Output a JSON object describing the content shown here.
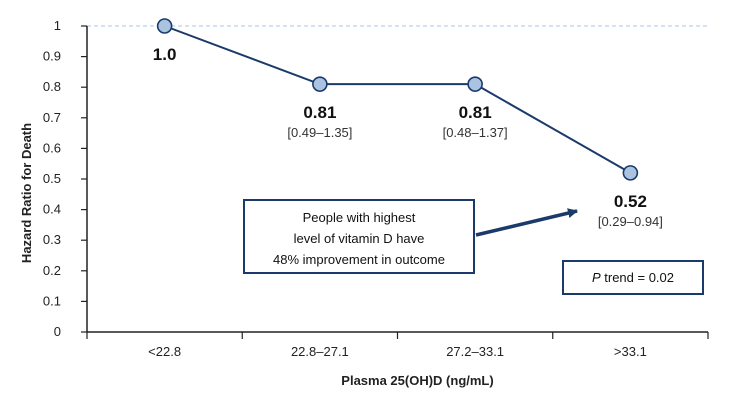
{
  "chart_data": {
    "type": "line",
    "title": "",
    "xlabel": "Plasma 25(OH)D (ng/mL)",
    "ylabel": "Hazard Ratio for Death",
    "categories": [
      "<22.8",
      "22.8–27.1",
      "27.2–33.1",
      ">33.1"
    ],
    "values": [
      1.0,
      0.81,
      0.81,
      0.52
    ],
    "value_labels": [
      "1.0",
      "0.81",
      "0.81",
      "0.52"
    ],
    "ci_labels": [
      "",
      "[0.49–1.35]",
      "[0.48–1.37]",
      "[0.29–0.94]"
    ],
    "ylim": [
      0,
      1
    ],
    "yticks": [
      "0",
      "0.1",
      "0.2",
      "0.3",
      "0.4",
      "0.5",
      "0.6",
      "0.7",
      "0.8",
      "0.9",
      "1"
    ],
    "reference_line": 1.0,
    "grid": false,
    "colors": {
      "line": "#1a3a6b",
      "marker_fill": "#a9c3e0",
      "marker_stroke": "#1a3a6b",
      "reference": "#a9c6e6",
      "axis": "#222222"
    },
    "annotation": {
      "lines": [
        "People with highest",
        "level of vitamin D have",
        "48% improvement in outcome"
      ]
    },
    "trend_box": {
      "italic_part": "P",
      "text": " trend = 0.02"
    }
  }
}
